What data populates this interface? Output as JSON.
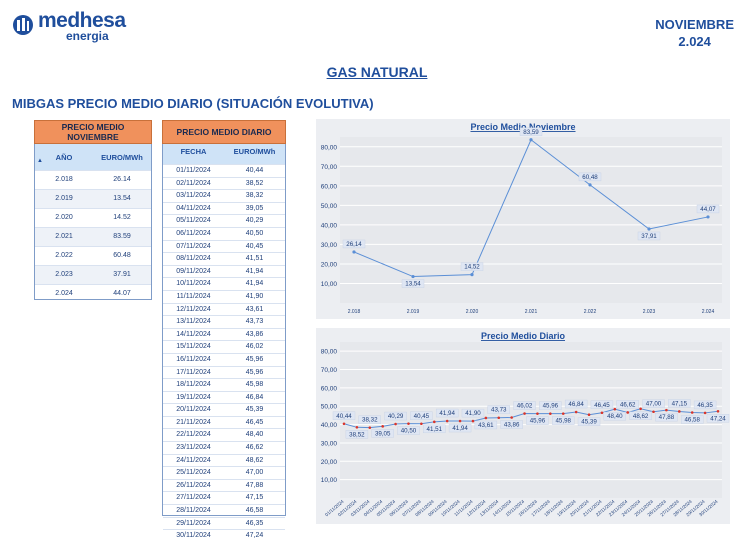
{
  "header": {
    "brand": "medhesa",
    "brand_sub": "energia",
    "period_line1": "NOVIEMBRE",
    "period_line2": "2.024"
  },
  "title": "GAS NATURAL",
  "subtitle": "MIBGAS PRECIO MEDIO DIARIO (SITUACIÓN EVOLUTIVA)",
  "table_nov": {
    "title": "PRECIO MEDIO NOVIEMBRE",
    "col1": "AÑO",
    "col2": "EURO/MWh",
    "rows": [
      [
        "2.018",
        "26.14"
      ],
      [
        "2.019",
        "13.54"
      ],
      [
        "2.020",
        "14.52"
      ],
      [
        "2.021",
        "83.59"
      ],
      [
        "2.022",
        "60.48"
      ],
      [
        "2.023",
        "37.91"
      ],
      [
        "2.024",
        "44.07"
      ]
    ]
  },
  "table_daily": {
    "title": "PRECIO MEDIO DIARIO",
    "col1": "FECHA",
    "col2": "EURO/MWh",
    "rows": [
      [
        "01/11/2024",
        "40,44"
      ],
      [
        "02/11/2024",
        "38,52"
      ],
      [
        "03/11/2024",
        "38,32"
      ],
      [
        "04/11/2024",
        "39,05"
      ],
      [
        "05/11/2024",
        "40,29"
      ],
      [
        "06/11/2024",
        "40,50"
      ],
      [
        "07/11/2024",
        "40,45"
      ],
      [
        "08/11/2024",
        "41,51"
      ],
      [
        "09/11/2024",
        "41,94"
      ],
      [
        "10/11/2024",
        "41,94"
      ],
      [
        "11/11/2024",
        "41,90"
      ],
      [
        "12/11/2024",
        "43,61"
      ],
      [
        "13/11/2024",
        "43,73"
      ],
      [
        "14/11/2024",
        "43,86"
      ],
      [
        "15/11/2024",
        "46,02"
      ],
      [
        "16/11/2024",
        "45,96"
      ],
      [
        "17/11/2024",
        "45,96"
      ],
      [
        "18/11/2024",
        "45,98"
      ],
      [
        "19/11/2024",
        "46,84"
      ],
      [
        "20/11/2024",
        "45,39"
      ],
      [
        "21/11/2024",
        "46,45"
      ],
      [
        "22/11/2024",
        "48,40"
      ],
      [
        "23/11/2024",
        "46,62"
      ],
      [
        "24/11/2024",
        "48,62"
      ],
      [
        "25/11/2024",
        "47,00"
      ],
      [
        "26/11/2024",
        "47,88"
      ],
      [
        "27/11/2024",
        "47,15"
      ],
      [
        "28/11/2024",
        "46,58"
      ],
      [
        "29/11/2024",
        "46,35"
      ],
      [
        "30/11/2024",
        "47,24"
      ]
    ]
  },
  "chart_data": [
    {
      "type": "line",
      "title": "Precio Medio Noviembre",
      "categories": [
        "2.018",
        "2.019",
        "2.020",
        "2.021",
        "2.022",
        "2.023",
        "2.024"
      ],
      "values": [
        26.14,
        13.54,
        14.52,
        83.59,
        60.48,
        37.91,
        44.07
      ],
      "labels": [
        "26,14",
        "13,54",
        "14,52",
        "83,59",
        "60,48",
        "37,91",
        "44,07"
      ],
      "yticks": [
        "10,00",
        "20,00",
        "30,00",
        "40,00",
        "50,00",
        "60,00",
        "70,00",
        "80,00"
      ],
      "ylim": [
        0,
        85
      ],
      "line_color": "#5b8fd6"
    },
    {
      "type": "line",
      "title": "Precio Medio Diario",
      "categories": [
        "01/11/2024",
        "02/11/2024",
        "03/11/2024",
        "04/11/2024",
        "05/11/2024",
        "06/11/2024",
        "07/11/2024",
        "08/11/2024",
        "09/11/2024",
        "10/11/2024",
        "11/11/2024",
        "12/11/2024",
        "13/11/2024",
        "14/11/2024",
        "15/11/2024",
        "16/11/2024",
        "17/11/2024",
        "18/11/2024",
        "19/11/2024",
        "20/11/2024",
        "21/11/2024",
        "22/11/2024",
        "23/11/2024",
        "24/11/2024",
        "25/11/2024",
        "26/11/2024",
        "27/11/2024",
        "28/11/2024",
        "29/11/2024",
        "30/11/2024"
      ],
      "values": [
        40.44,
        38.52,
        38.32,
        39.05,
        40.29,
        40.5,
        40.45,
        41.51,
        41.94,
        41.94,
        41.9,
        43.61,
        43.73,
        43.86,
        46.02,
        45.96,
        45.96,
        45.98,
        46.84,
        45.39,
        46.45,
        48.4,
        46.62,
        48.62,
        47.0,
        47.88,
        47.15,
        46.58,
        46.35,
        47.24
      ],
      "labels": [
        "40,44",
        "38,52",
        "38,32",
        "39,05",
        "40,29",
        "40,50",
        "40,45",
        "41,51",
        "41,94",
        "41,94",
        "41,90",
        "43,61",
        "43,73",
        "43,86",
        "46,02",
        "45,96",
        "45,96",
        "45,98",
        "46,84",
        "45,39",
        "46,45",
        "48,40",
        "46,62",
        "48,62",
        "47,00",
        "47,88",
        "47,15",
        "46,58",
        "46,35",
        "47,24"
      ],
      "yticks": [
        "10,00",
        "20,00",
        "30,00",
        "40,00",
        "50,00",
        "60,00",
        "70,00",
        "80,00"
      ],
      "ylim": [
        0,
        85
      ],
      "line_color": "#5b8fd6",
      "marker_color": "#d9342b"
    }
  ]
}
